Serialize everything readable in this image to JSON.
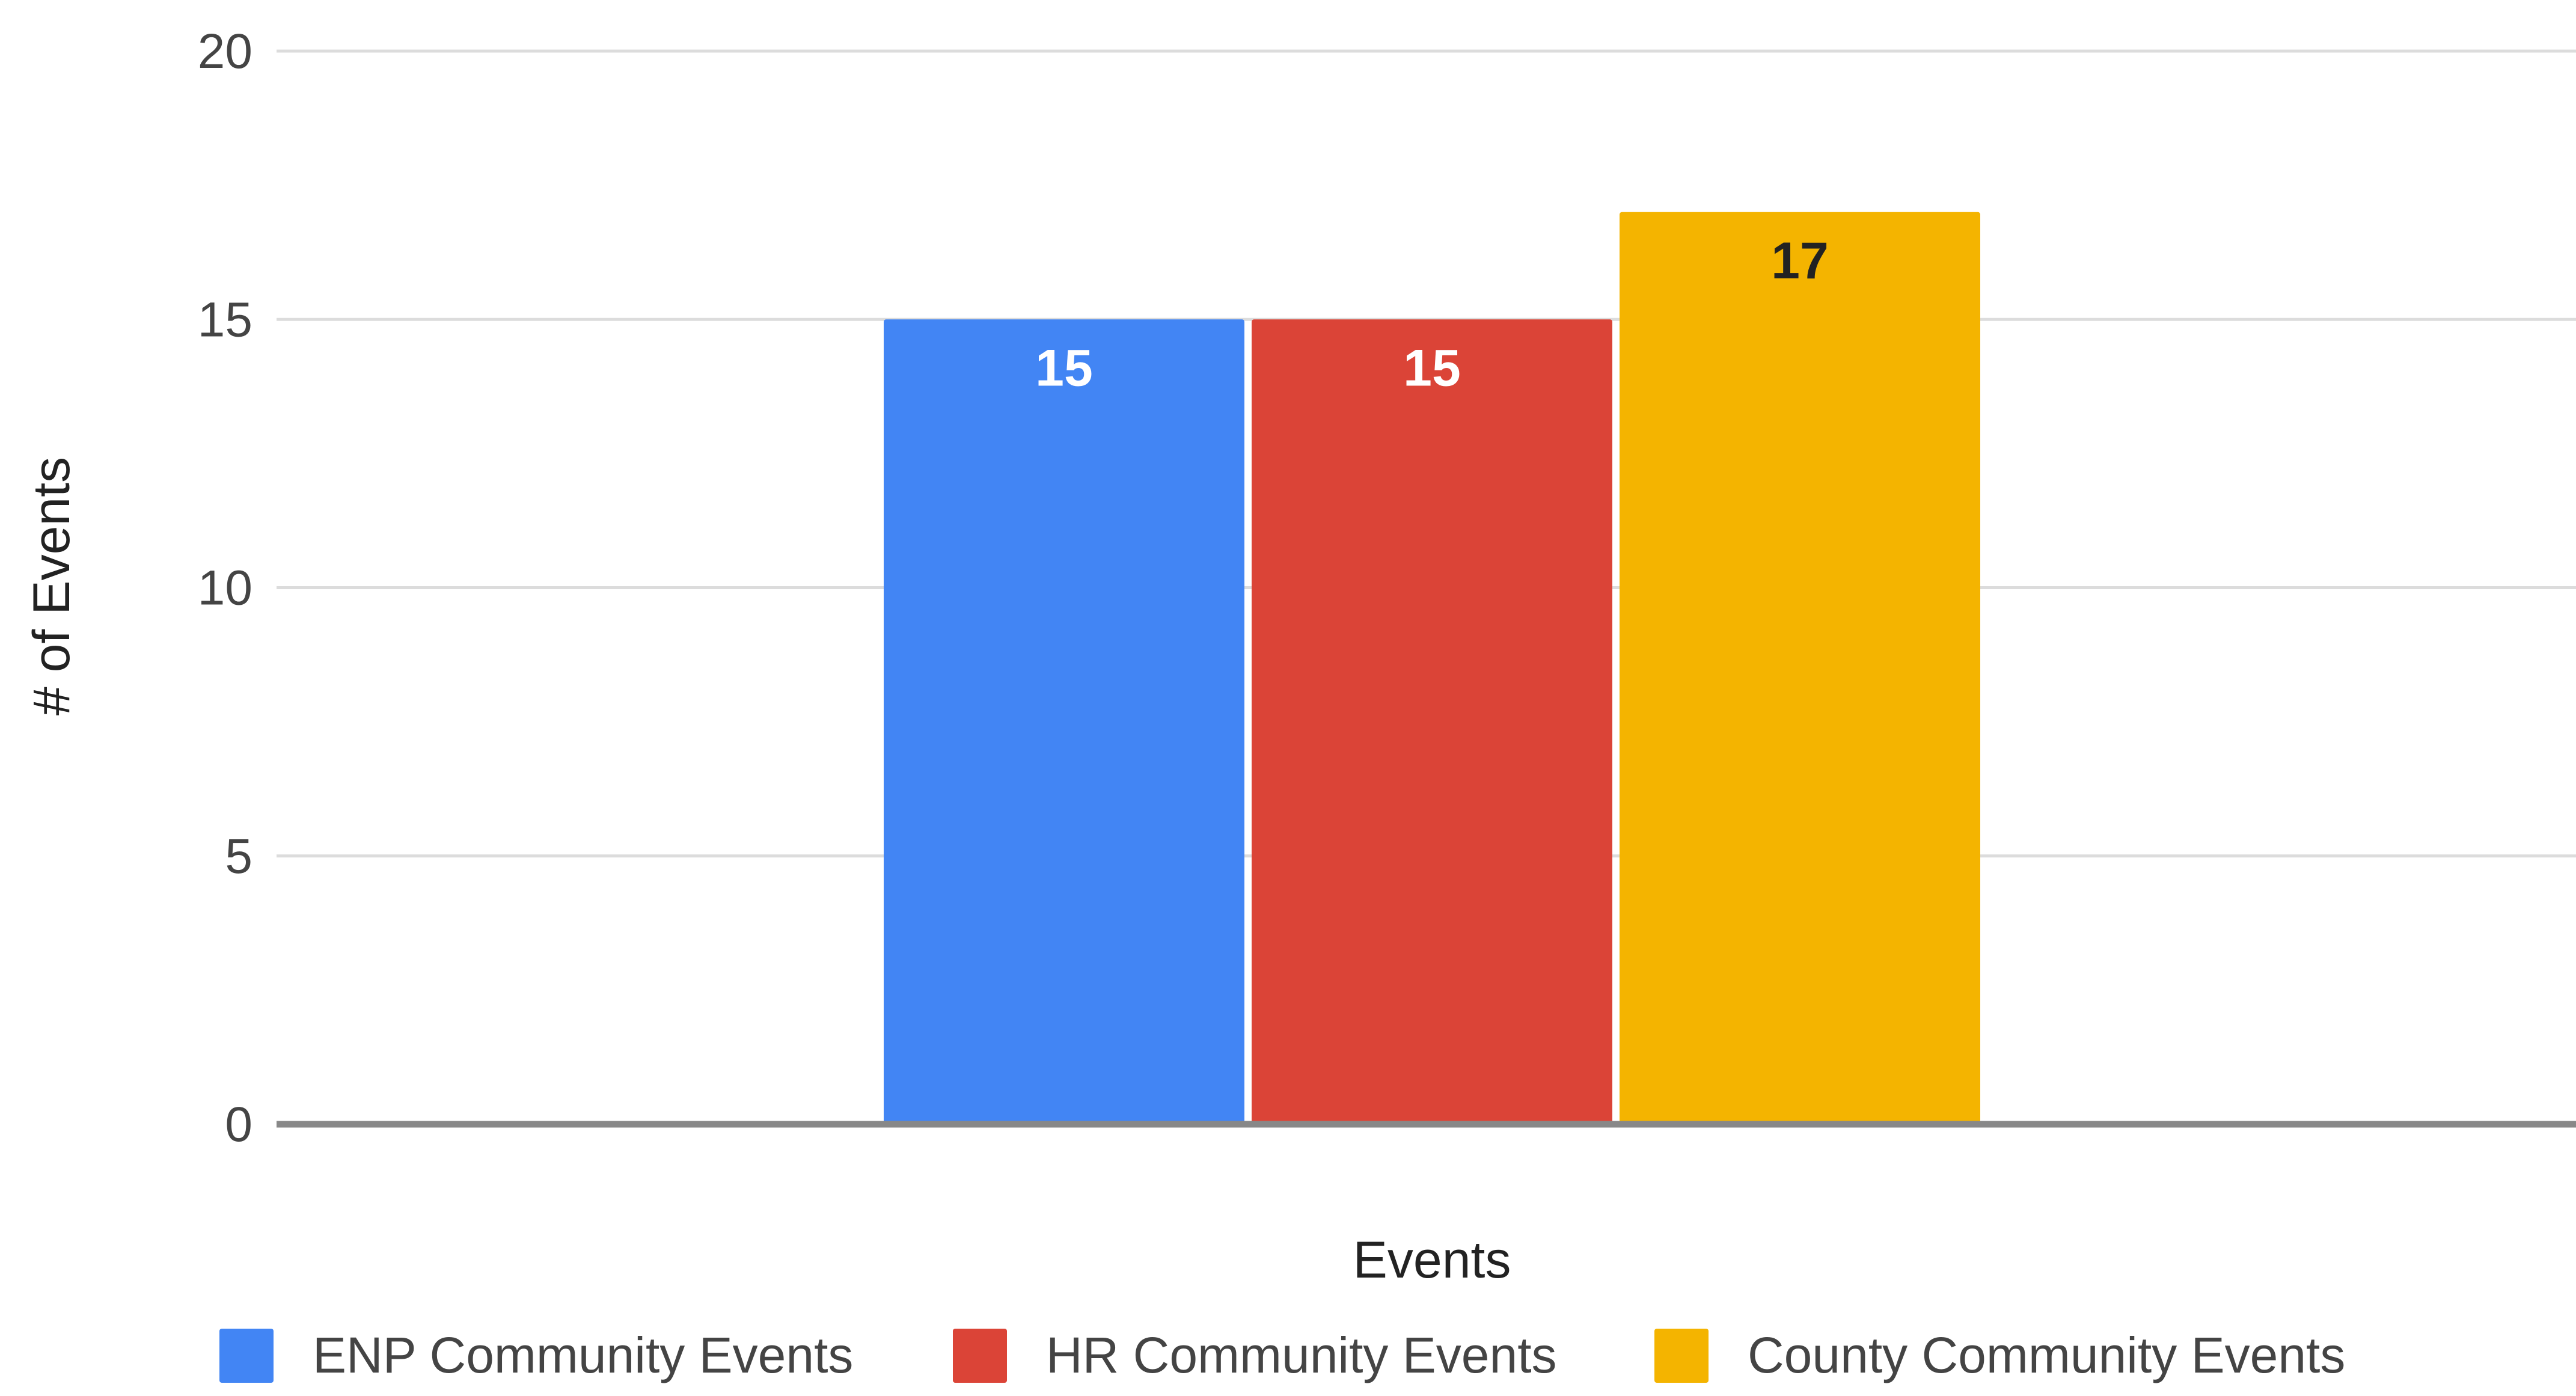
{
  "chart_data": {
    "type": "bar",
    "categories": [
      ""
    ],
    "series": [
      {
        "name": "ENP Community Events",
        "values": [
          15
        ],
        "color": "#4285F4",
        "label_color": "#ffffff"
      },
      {
        "name": "HR Community Events",
        "values": [
          15
        ],
        "color": "#DB4437",
        "label_color": "#ffffff"
      },
      {
        "name": "County Community Events",
        "values": [
          17
        ],
        "color": "#F4B400",
        "label_color": "#222222"
      }
    ],
    "xlabel": "Events",
    "ylabel": "# of Events",
    "ylim": [
      0,
      20
    ],
    "yticks": [
      0,
      5,
      10,
      15,
      20
    ],
    "grid": true,
    "legend_position": "bottom",
    "data_labels": true
  }
}
